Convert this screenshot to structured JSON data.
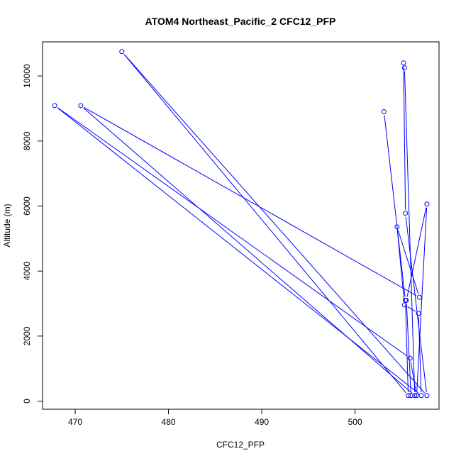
{
  "chart_data": {
    "type": "line",
    "title": "ATOM4 Northeast_Pacific_2 CFC12_PFP",
    "xlabel": "CFC12_PFP",
    "ylabel": "Altitude (m)",
    "xlim": [
      466.5,
      509.0
    ],
    "ylim": [
      -250,
      11050
    ],
    "x_ticks": [
      470,
      480,
      490,
      500
    ],
    "x_tick_labels": [
      "470",
      "480",
      "490",
      "500"
    ],
    "y_ticks": [
      0,
      2000,
      4000,
      6000,
      8000,
      10000
    ],
    "y_tick_labels": [
      "0",
      "2000",
      "4000",
      "6000",
      "8000",
      "10000"
    ],
    "grid": false,
    "legend": "none",
    "series_color": "#0000ff",
    "points": [
      {
        "x": 503.1,
        "y": 8900
      },
      {
        "x": 505.4,
        "y": 3100
      },
      {
        "x": 505.7,
        "y": 170
      },
      {
        "x": 475.0,
        "y": 10750
      },
      {
        "x": 507.7,
        "y": 170
      },
      {
        "x": 505.4,
        "y": 5780
      },
      {
        "x": 505.2,
        "y": 10400
      },
      {
        "x": 505.3,
        "y": 10250
      },
      {
        "x": 506.4,
        "y": 170
      },
      {
        "x": 470.6,
        "y": 9090
      },
      {
        "x": 506.9,
        "y": 3190
      },
      {
        "x": 504.5,
        "y": 5360
      },
      {
        "x": 505.3,
        "y": 2960
      },
      {
        "x": 506.8,
        "y": 2700
      },
      {
        "x": 507.1,
        "y": 170
      },
      {
        "x": 467.8,
        "y": 9090
      },
      {
        "x": 505.9,
        "y": 1320
      },
      {
        "x": 506.6,
        "y": 170
      },
      {
        "x": 507.7,
        "y": 6060
      },
      {
        "x": 505.5,
        "y": 3100
      },
      {
        "x": 506.0,
        "y": 170
      }
    ]
  }
}
